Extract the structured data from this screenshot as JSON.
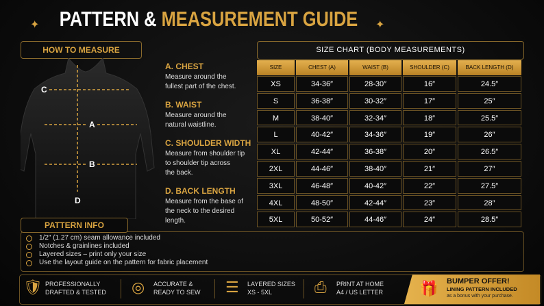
{
  "header": {
    "title_white": "PATTERN &",
    "title_gold": "MEASUREMENT GUIDE"
  },
  "how_to_measure": {
    "title": "HOW TO MEASURE",
    "labels": [
      "C",
      "A",
      "B",
      "D"
    ]
  },
  "instructions": [
    {
      "heading": "A. CHEST",
      "lines": [
        "Measure around the",
        "fullest part of the chest."
      ]
    },
    {
      "heading": "B. WAIST",
      "lines": [
        "Measure around the",
        "natural waistline."
      ]
    },
    {
      "heading": "C. SHOULDER WIDTH",
      "lines": [
        "Measure from shoulder tip",
        "to shoulder tip across",
        "the back."
      ]
    },
    {
      "heading": "D. BACK LENGTH",
      "lines": [
        "Measure from the base of",
        "the neck to the desired",
        "length."
      ]
    }
  ],
  "size_chart": {
    "title": "SIZE CHART (BODY MEASUREMENTS)",
    "columns": [
      "SIZE",
      "CHEST (A)",
      "WAIST (B)",
      "SHOULDER (C)",
      "BACK LENGTH (D)"
    ],
    "rows": [
      [
        "XS",
        "34-36″",
        "28-30″",
        "16″",
        "24.5″"
      ],
      [
        "S",
        "36-38″",
        "30-32″",
        "17″",
        "25″"
      ],
      [
        "M",
        "38-40″",
        "32-34″",
        "18″",
        "25.5″"
      ],
      [
        "L",
        "40-42″",
        "34-36″",
        "19″",
        "26″"
      ],
      [
        "XL",
        "42-44″",
        "36-38″",
        "20″",
        "26.5″"
      ],
      [
        "2XL",
        "44-46″",
        "38-40″",
        "21″",
        "27″"
      ],
      [
        "3XL",
        "46-48″",
        "40-42″",
        "22″",
        "27.5″"
      ],
      [
        "4XL",
        "48-50″",
        "42-44″",
        "23″",
        "28″"
      ],
      [
        "5XL",
        "50-52″",
        "44-46″",
        "24″",
        "28.5″"
      ]
    ]
  },
  "pattern_info": {
    "title": "PATTERN INFO",
    "items": [
      "1/2″ (1.27 cm) seam allowance included",
      "Notches & grainlines included",
      "Layered sizes – print only your size",
      "Use the layout guide on the pattern for fabric placement"
    ]
  },
  "features": [
    {
      "lines": [
        "PROFESSIONALLY",
        "DRAFTED & TESTED"
      ]
    },
    {
      "lines": [
        "ACCURATE &",
        "READY TO SEW"
      ]
    },
    {
      "lines": [
        "LAYERED SIZES",
        "XS - 5XL"
      ]
    },
    {
      "lines": [
        "PRINT AT HOME",
        "A4 / US LETTER"
      ]
    }
  ],
  "offer": {
    "title": "BUMPER OFFER!",
    "line1": "LINING PATTERN INCLUDED",
    "line2": "as a bonus with your purchase."
  }
}
